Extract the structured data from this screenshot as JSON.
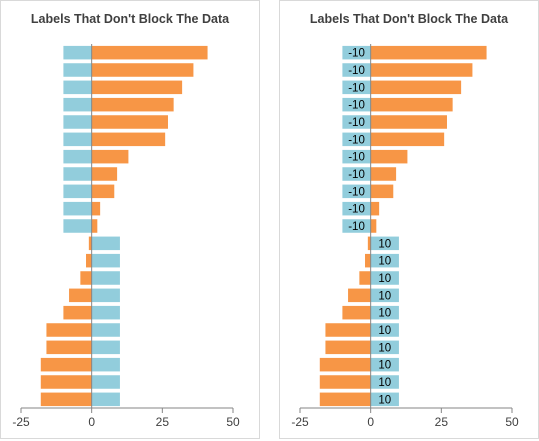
{
  "colors": {
    "positive": "#F79646",
    "negative": "#4BACC6",
    "helper": "#92CDDC",
    "axis": "#868686",
    "text": "#404040"
  },
  "chart_data": [
    {
      "type": "bar",
      "orientation": "horizontal",
      "title": "Labels That Don't Block The Data",
      "xlim": [
        -25,
        50
      ],
      "xticks": [
        -25,
        0,
        25,
        50
      ],
      "tick_labels": [
        "-25",
        "0",
        "25",
        "50"
      ],
      "grid": false,
      "show_helper_labels": false,
      "series": [
        {
          "values": [
            41,
            36,
            32,
            29,
            27,
            26,
            13,
            9,
            8,
            3,
            2,
            -1,
            -2,
            -4,
            -8,
            -10,
            -16,
            -16,
            -18,
            -18,
            -18
          ]
        },
        {
          "values": [
            -10,
            -10,
            -10,
            -10,
            -10,
            -10,
            -10,
            -10,
            -10,
            -10,
            -10,
            10,
            10,
            10,
            10,
            10,
            10,
            10,
            10,
            10,
            10
          ]
        }
      ]
    },
    {
      "type": "bar",
      "orientation": "horizontal",
      "title": "Labels That Don't Block The Data",
      "xlim": [
        -25,
        50
      ],
      "xticks": [
        -25,
        0,
        25,
        50
      ],
      "tick_labels": [
        "-25",
        "0",
        "25",
        "50"
      ],
      "grid": false,
      "show_helper_labels": true,
      "series": [
        {
          "values": [
            41,
            36,
            32,
            29,
            27,
            26,
            13,
            9,
            8,
            3,
            2,
            -1,
            -2,
            -4,
            -8,
            -10,
            -16,
            -16,
            -18,
            -18,
            -18
          ]
        },
        {
          "values": [
            -10,
            -10,
            -10,
            -10,
            -10,
            -10,
            -10,
            -10,
            -10,
            -10,
            -10,
            10,
            10,
            10,
            10,
            10,
            10,
            10,
            10,
            10,
            10
          ],
          "data_labels": [
            "-10",
            "-10",
            "-10",
            "-10",
            "-10",
            "-10",
            "-10",
            "-10",
            "-10",
            "-10",
            "-10",
            "10",
            "10",
            "10",
            "10",
            "10",
            "10",
            "10",
            "10",
            "10",
            "10"
          ]
        }
      ]
    }
  ]
}
